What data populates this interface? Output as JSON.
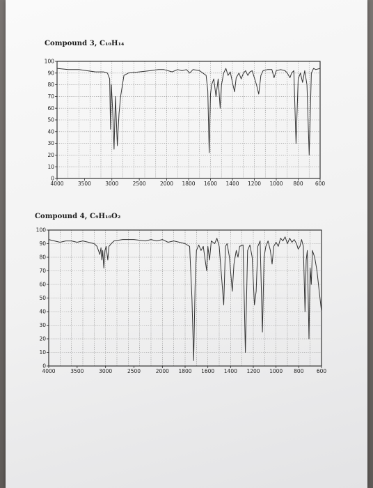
{
  "chart_data": [
    {
      "type": "line",
      "title": "Compound 3, C₁₀H₁₄",
      "y_ticks": [
        "100",
        "90",
        "80",
        "70",
        "60",
        "50",
        "40",
        "30",
        "20",
        "10",
        "0"
      ],
      "x_ticks": [
        "4000",
        "3500",
        "3000",
        "2500",
        "2000",
        "1800",
        "1600",
        "1400",
        "1200",
        "1000",
        "800",
        "600"
      ],
      "ylim": [
        0,
        100
      ],
      "xlim": [
        4000,
        600
      ],
      "grid": true,
      "line_color": "#333333",
      "series": [
        {
          "points": [
            [
              4000,
              94
            ],
            [
              3800,
              93
            ],
            [
              3600,
              93
            ],
            [
              3300,
              91
            ],
            [
              3150,
              91
            ],
            [
              3080,
              90
            ],
            [
              3040,
              85
            ],
            [
              3025,
              42
            ],
            [
              3010,
              80
            ],
            [
              2985,
              58
            ],
            [
              2960,
              25
            ],
            [
              2935,
              70
            ],
            [
              2900,
              28
            ],
            [
              2870,
              55
            ],
            [
              2840,
              70
            ],
            [
              2780,
              88
            ],
            [
              2700,
              90
            ],
            [
              2500,
              91
            ],
            [
              2300,
              92
            ],
            [
              2150,
              93
            ],
            [
              2050,
              93
            ],
            [
              1950,
              91
            ],
            [
              1900,
              93
            ],
            [
              1860,
              92
            ],
            [
              1820,
              93
            ],
            [
              1790,
              90
            ],
            [
              1760,
              93
            ],
            [
              1700,
              92
            ],
            [
              1640,
              88
            ],
            [
              1625,
              75
            ],
            [
              1612,
              22
            ],
            [
              1600,
              72
            ],
            [
              1590,
              80
            ],
            [
              1570,
              85
            ],
            [
              1550,
              70
            ],
            [
              1530,
              85
            ],
            [
              1512,
              60
            ],
            [
              1500,
              80
            ],
            [
              1480,
              90
            ],
            [
              1460,
              94
            ],
            [
              1440,
              88
            ],
            [
              1420,
              91
            ],
            [
              1400,
              82
            ],
            [
              1380,
              74
            ],
            [
              1366,
              86
            ],
            [
              1340,
              90
            ],
            [
              1320,
              85
            ],
            [
              1300,
              90
            ],
            [
              1280,
              92
            ],
            [
              1260,
              88
            ],
            [
              1240,
              91
            ],
            [
              1220,
              92
            ],
            [
              1180,
              80
            ],
            [
              1160,
              72
            ],
            [
              1140,
              88
            ],
            [
              1120,
              92
            ],
            [
              1080,
              93
            ],
            [
              1040,
              93
            ],
            [
              1020,
              86
            ],
            [
              1000,
              92
            ],
            [
              960,
              93
            ],
            [
              920,
              92
            ],
            [
              900,
              90
            ],
            [
              875,
              86
            ],
            [
              860,
              90
            ],
            [
              840,
              92
            ],
            [
              820,
              30
            ],
            [
              800,
              85
            ],
            [
              780,
              90
            ],
            [
              760,
              82
            ],
            [
              740,
              92
            ],
            [
              720,
              80
            ],
            [
              700,
              20
            ],
            [
              680,
              90
            ],
            [
              660,
              94
            ],
            [
              640,
              93
            ],
            [
              600,
              94
            ]
          ]
        }
      ]
    },
    {
      "type": "line",
      "title": "Compound 4, C₉H₁₀O₂",
      "y_ticks": [
        "100",
        "90",
        "80",
        "70",
        "60",
        "50",
        "40",
        "30",
        "20",
        "10",
        "0"
      ],
      "x_ticks": [
        "4000",
        "3500",
        "3000",
        "2500",
        "2000",
        "1800",
        "1600",
        "1400",
        "1200",
        "1000",
        "800",
        "600"
      ],
      "ylim": [
        0,
        100
      ],
      "xlim": [
        4000,
        600
      ],
      "grid": true,
      "line_color": "#333333",
      "series": [
        {
          "points": [
            [
              4000,
              93
            ],
            [
              3900,
              92
            ],
            [
              3800,
              91
            ],
            [
              3700,
              92
            ],
            [
              3600,
              92
            ],
            [
              3500,
              91
            ],
            [
              3400,
              92
            ],
            [
              3300,
              91
            ],
            [
              3200,
              90
            ],
            [
              3150,
              88
            ],
            [
              3100,
              82
            ],
            [
              3080,
              87
            ],
            [
              3065,
              78
            ],
            [
              3050,
              85
            ],
            [
              3030,
              72
            ],
            [
              3010,
              85
            ],
            [
              2990,
              88
            ],
            [
              2960,
              78
            ],
            [
              2940,
              88
            ],
            [
              2900,
              90
            ],
            [
              2850,
              92
            ],
            [
              2700,
              93
            ],
            [
              2500,
              93
            ],
            [
              2300,
              92
            ],
            [
              2200,
              93
            ],
            [
              2100,
              92
            ],
            [
              2000,
              93
            ],
            [
              1950,
              91
            ],
            [
              1900,
              92
            ],
            [
              1850,
              91
            ],
            [
              1800,
              90
            ],
            [
              1760,
              88
            ],
            [
              1740,
              50
            ],
            [
              1725,
              4
            ],
            [
              1712,
              60
            ],
            [
              1700,
              85
            ],
            [
              1680,
              89
            ],
            [
              1660,
              85
            ],
            [
              1640,
              88
            ],
            [
              1610,
              70
            ],
            [
              1600,
              88
            ],
            [
              1585,
              78
            ],
            [
              1570,
              92
            ],
            [
              1540,
              90
            ],
            [
              1520,
              94
            ],
            [
              1500,
              88
            ],
            [
              1460,
              45
            ],
            [
              1445,
              88
            ],
            [
              1430,
              90
            ],
            [
              1410,
              80
            ],
            [
              1400,
              70
            ],
            [
              1385,
              55
            ],
            [
              1370,
              75
            ],
            [
              1350,
              85
            ],
            [
              1335,
              80
            ],
            [
              1320,
              88
            ],
            [
              1290,
              89
            ],
            [
              1270,
              10
            ],
            [
              1250,
              85
            ],
            [
              1230,
              89
            ],
            [
              1210,
              80
            ],
            [
              1190,
              45
            ],
            [
              1175,
              55
            ],
            [
              1160,
              88
            ],
            [
              1140,
              92
            ],
            [
              1120,
              25
            ],
            [
              1105,
              80
            ],
            [
              1090,
              88
            ],
            [
              1070,
              92
            ],
            [
              1050,
              85
            ],
            [
              1035,
              75
            ],
            [
              1020,
              88
            ],
            [
              1000,
              91
            ],
            [
              980,
              88
            ],
            [
              960,
              94
            ],
            [
              940,
              92
            ],
            [
              920,
              95
            ],
            [
              900,
              90
            ],
            [
              880,
              94
            ],
            [
              860,
              91
            ],
            [
              840,
              93
            ],
            [
              820,
              90
            ],
            [
              805,
              86
            ],
            [
              790,
              88
            ],
            [
              775,
              93
            ],
            [
              760,
              88
            ],
            [
              745,
              40
            ],
            [
              735,
              78
            ],
            [
              725,
              85
            ],
            [
              710,
              20
            ],
            [
              700,
              72
            ],
            [
              690,
              60
            ],
            [
              680,
              85
            ],
            [
              660,
              80
            ],
            [
              640,
              70
            ],
            [
              620,
              55
            ],
            [
              600,
              40
            ]
          ]
        }
      ]
    }
  ]
}
